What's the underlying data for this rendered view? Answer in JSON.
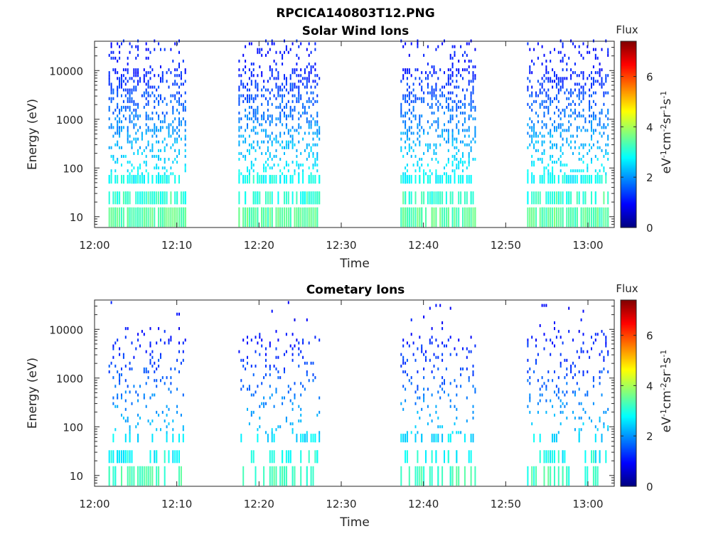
{
  "figure_title": "RPCICA140803T12.PNG",
  "chart_data": [
    {
      "type": "heatmap",
      "title": "Solar Wind Ions",
      "xlabel": "Time",
      "ylabel": "Energy (eV)",
      "x_ticks": [
        "12:00",
        "12:10",
        "12:20",
        "12:30",
        "12:40",
        "12:50",
        "13:00"
      ],
      "x_tick_minutes": [
        0,
        10,
        20,
        30,
        40,
        50,
        60
      ],
      "xlim_minutes": [
        0,
        63.2
      ],
      "y_scale": "log",
      "y_ticks": [
        "10",
        "100",
        "1000",
        "10000"
      ],
      "y_tick_values": [
        10,
        100,
        1000,
        10000
      ],
      "ylim": [
        6,
        40000
      ],
      "colorbar": {
        "label": "Flux",
        "units": "eV-1cm-2sr-1s-1",
        "range": [
          0,
          7.4
        ],
        "ticks": [
          "0",
          "2",
          "4",
          "6"
        ],
        "tick_values": [
          0,
          2,
          4,
          6
        ],
        "colormap": "jet"
      },
      "data_intervals_minutes": [
        [
          1.7,
          11.2
        ],
        [
          17.5,
          27.5
        ],
        [
          37.2,
          46.4
        ],
        [
          52.6,
          62.6
        ]
      ],
      "typical_flux_by_energy": [
        {
          "energy": 10,
          "flux": 3.5
        },
        {
          "energy": 30,
          "flux": 3.0
        },
        {
          "energy": 100,
          "flux": 2.6
        },
        {
          "energy": 1000,
          "flux": 1.8
        },
        {
          "energy": 10000,
          "flux": 1.1
        }
      ]
    },
    {
      "type": "heatmap",
      "title": "Cometary Ions",
      "xlabel": "Time",
      "ylabel": "Energy (eV)",
      "x_ticks": [
        "12:00",
        "12:10",
        "12:20",
        "12:30",
        "12:40",
        "12:50",
        "13:00"
      ],
      "x_tick_minutes": [
        0,
        10,
        20,
        30,
        40,
        50,
        60
      ],
      "xlim_minutes": [
        0,
        63.2
      ],
      "y_scale": "log",
      "y_ticks": [
        "10",
        "100",
        "1000",
        "10000"
      ],
      "y_tick_values": [
        10,
        100,
        1000,
        10000
      ],
      "ylim": [
        6,
        40000
      ],
      "colorbar": {
        "label": "Flux",
        "units": "eV-1cm-2sr-1s-1",
        "range": [
          0,
          7.4
        ],
        "ticks": [
          "0",
          "2",
          "4",
          "6"
        ],
        "tick_values": [
          0,
          2,
          4,
          6
        ],
        "colormap": "jet"
      },
      "data_intervals_minutes": [
        [
          1.7,
          11.2
        ],
        [
          17.5,
          27.5
        ],
        [
          37.2,
          46.4
        ],
        [
          52.6,
          62.6
        ]
      ],
      "typical_flux_by_energy": [
        {
          "energy": 10,
          "flux": 3.3
        },
        {
          "energy": 30,
          "flux": 2.7
        },
        {
          "energy": 100,
          "flux": 2.3
        },
        {
          "energy": 1000,
          "flux": 1.5
        },
        {
          "energy": 10000,
          "flux": 1.0
        }
      ]
    }
  ]
}
